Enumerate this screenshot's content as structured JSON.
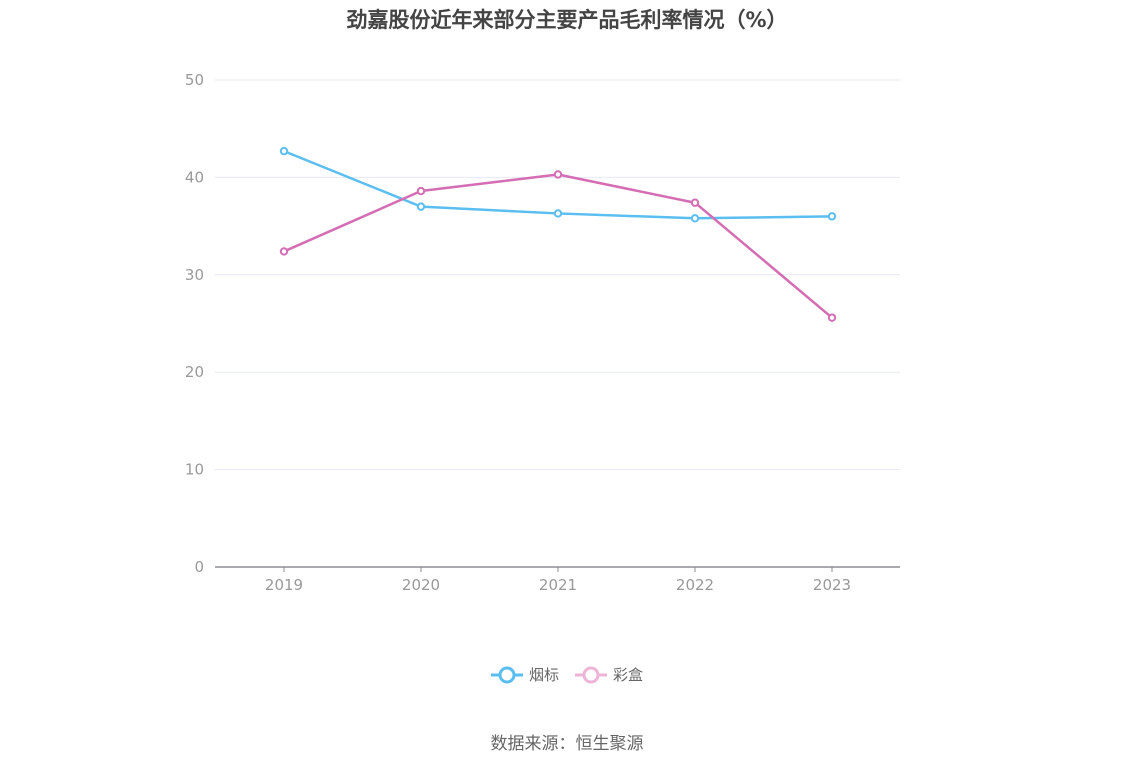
{
  "title": "劲嘉股份近年来部分主要产品毛利率情况（%）",
  "source": "数据来源：恒生聚源",
  "colors": {
    "yantiao": "#5bbef0",
    "caihe": "#d46db3",
    "caihe_legend": "#eeb4d8",
    "grid": "#e6e9f2",
    "axis": "#8e8e93",
    "tick_text": "#999999"
  },
  "chart_data": {
    "type": "line",
    "categories": [
      "2019",
      "2020",
      "2021",
      "2022",
      "2023"
    ],
    "ylim": [
      0,
      50
    ],
    "yticks": [
      0,
      10,
      20,
      30,
      40,
      50
    ],
    "grid": true,
    "legend_position": "bottom-center",
    "series": [
      {
        "name": "烟标",
        "values": [
          42.7,
          37.0,
          36.3,
          35.8,
          36.0
        ]
      },
      {
        "name": "彩盒",
        "values": [
          32.4,
          38.6,
          40.3,
          37.4,
          25.6
        ]
      }
    ]
  },
  "legend": [
    {
      "label": "烟标"
    },
    {
      "label": "彩盒"
    }
  ]
}
